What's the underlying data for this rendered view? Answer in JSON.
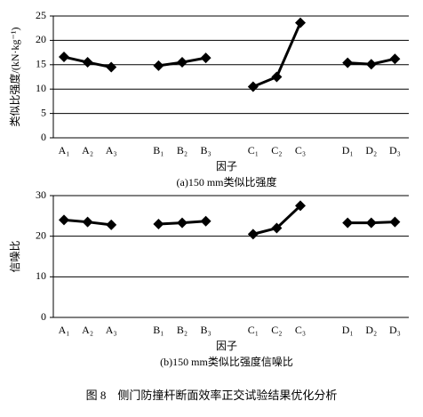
{
  "chart_data": [
    {
      "type": "line",
      "ylabel": "类似比强度/(kN·kg⁻¹)",
      "xlabel": "因子",
      "subtitle": "(a)150 mm类似比强度",
      "categories": [
        "A₁",
        "A₂",
        "A₃",
        null,
        "B₁",
        "B₂",
        "B₃",
        null,
        "C₁",
        "C₂",
        "C₃",
        null,
        "D₁",
        "D₂",
        "D₃"
      ],
      "values": [
        16.6,
        15.5,
        14.5,
        null,
        14.8,
        15.5,
        16.4,
        null,
        10.5,
        12.5,
        23.6,
        null,
        15.4,
        15.1,
        16.2
      ],
      "color": "#000000",
      "ylim": [
        0,
        25
      ],
      "yticks": [
        0,
        5,
        10,
        15,
        20,
        25
      ],
      "grid": true
    },
    {
      "type": "line",
      "ylabel": "信噪比",
      "xlabel": "因子",
      "subtitle": "(b)150 mm类似比强度信噪比",
      "categories": [
        "A₁",
        "A₂",
        "A₃",
        null,
        "B₁",
        "B₂",
        "B₃",
        null,
        "C₁",
        "C₂",
        "C₃",
        null,
        "D₁",
        "D₂",
        "D₃"
      ],
      "values": [
        24,
        23.5,
        22.8,
        null,
        23,
        23.3,
        23.7,
        null,
        20.5,
        22,
        27.5,
        null,
        23.3,
        23.3,
        23.5
      ],
      "color": "#000000",
      "ylim": [
        0,
        30
      ],
      "yticks": [
        0,
        10,
        20,
        30
      ],
      "grid": true
    }
  ],
  "caption": "图 8　侧门防撞杆断面效率正交试验结果优化分析"
}
